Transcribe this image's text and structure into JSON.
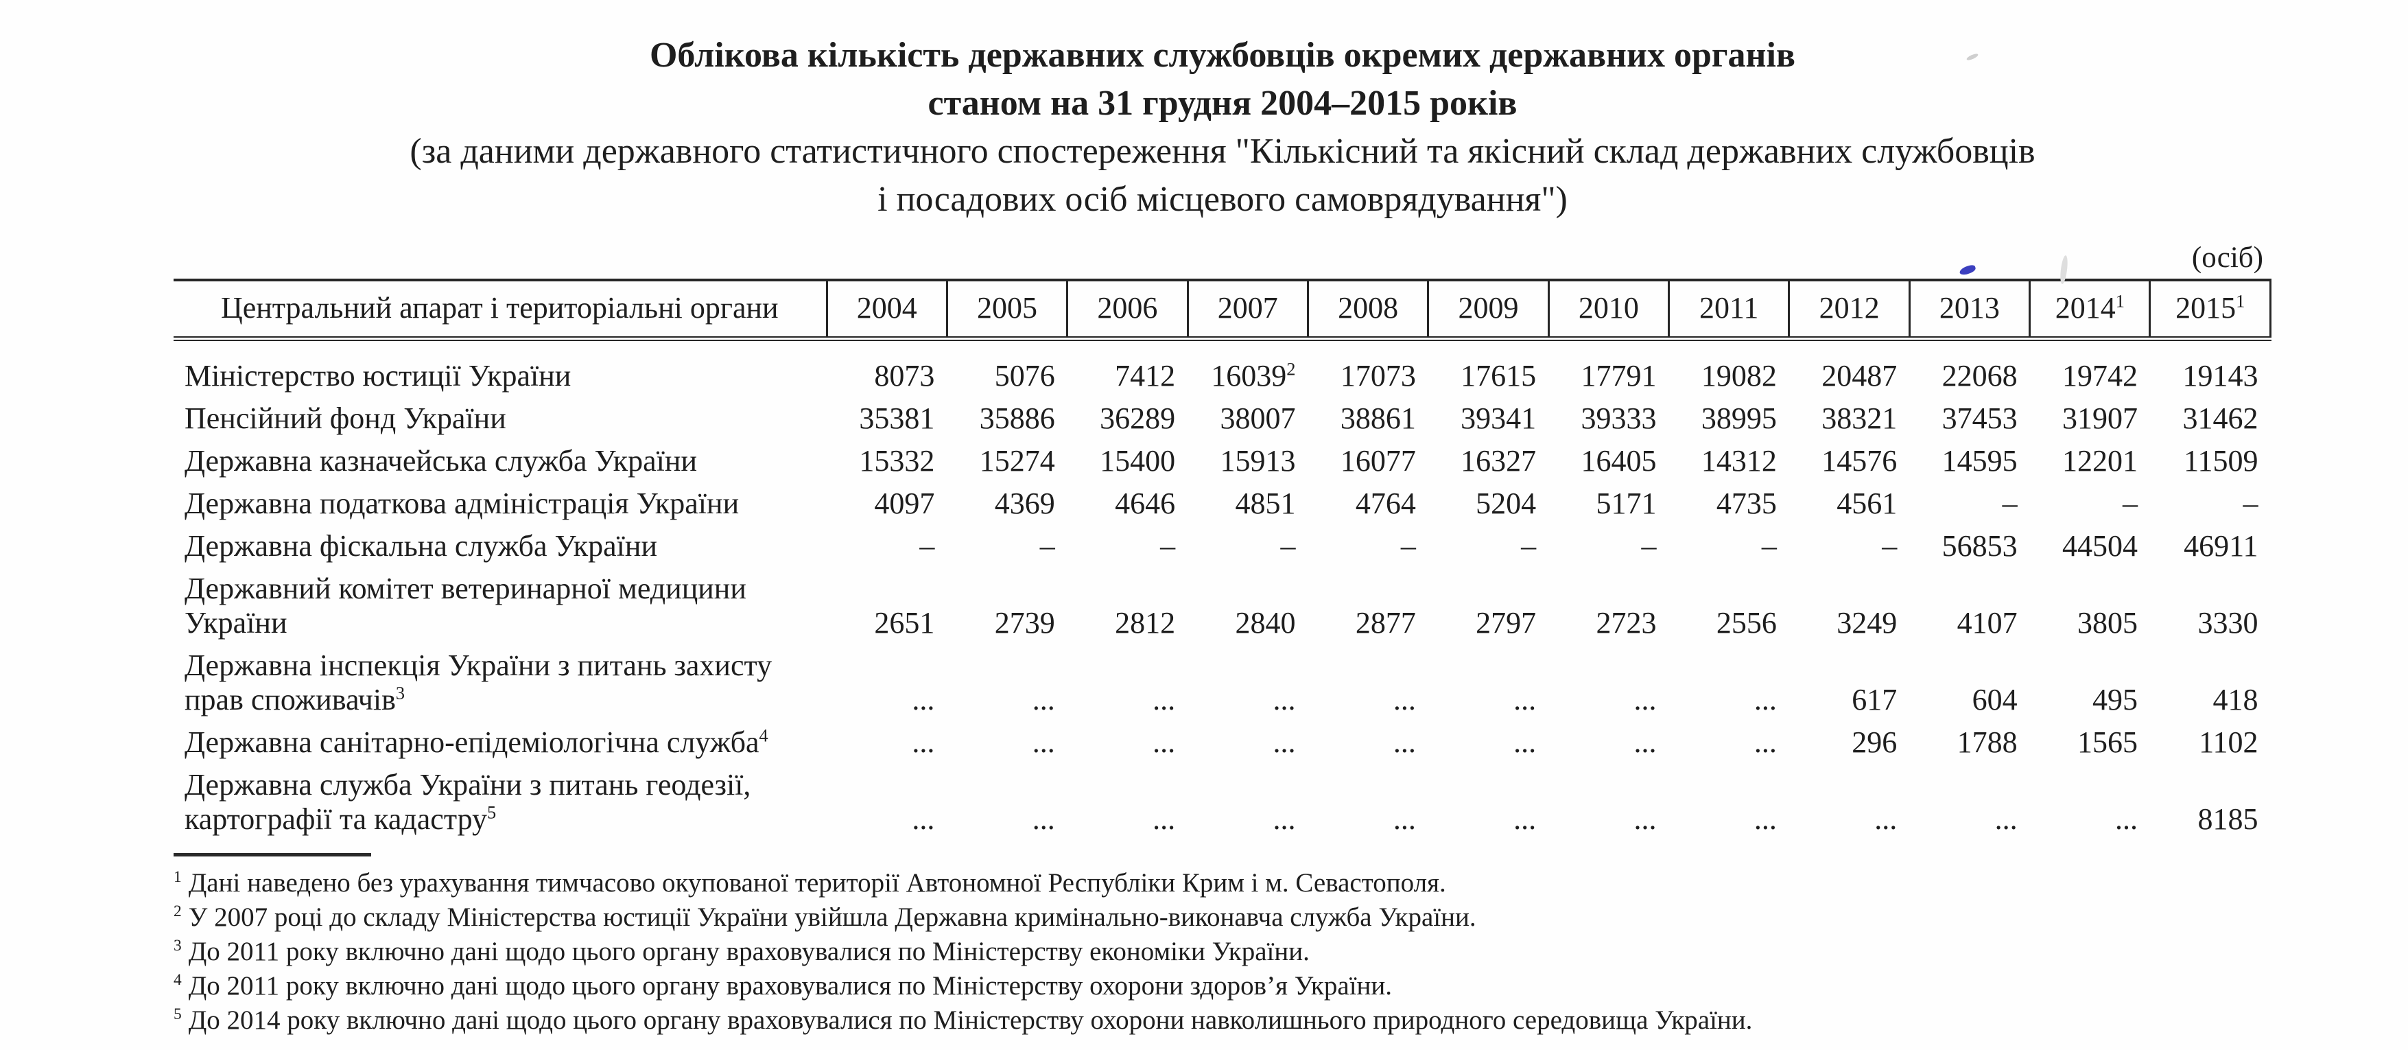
{
  "title": {
    "line1": "Облікова кількість державних службовців окремих державних органів",
    "line2": "станом на 31 грудня 2004–2015 років",
    "subtitle_line1": "(за даними державного статистичного спостереження \"Кількісний та якісний склад державних службовців",
    "subtitle_line2": "і посадових осіб місцевого самоврядування\")"
  },
  "unit_label": "(осіб)",
  "table": {
    "org_header": "Центральний апарат і територіальні органи",
    "year_headers": [
      "2004",
      "2005",
      "2006",
      "2007",
      "2008",
      "2009",
      "2010",
      "2011",
      "2012",
      "2013",
      {
        "t": "2014",
        "sup": "1"
      },
      {
        "t": "2015",
        "sup": "1"
      }
    ],
    "rows": [
      {
        "name_lines": [
          "Міністерство юстиції України"
        ],
        "values": [
          "8073",
          "5076",
          "7412",
          {
            "t": "16039",
            "sup": "2"
          },
          "17073",
          "17615",
          "17791",
          "19082",
          "20487",
          "22068",
          "19742",
          "19143"
        ]
      },
      {
        "name_lines": [
          "Пенсійний фонд України"
        ],
        "values": [
          "35381",
          "35886",
          "36289",
          "38007",
          "38861",
          "39341",
          "39333",
          "38995",
          "38321",
          "37453",
          "31907",
          "31462"
        ]
      },
      {
        "name_lines": [
          "Державна казначейська служба України"
        ],
        "values": [
          "15332",
          "15274",
          "15400",
          "15913",
          "16077",
          "16327",
          "16405",
          "14312",
          "14576",
          "14595",
          "12201",
          "11509"
        ]
      },
      {
        "name_lines": [
          "Державна податкова адміністрація України"
        ],
        "values": [
          "4097",
          "4369",
          "4646",
          "4851",
          "4764",
          "5204",
          "5171",
          "4735",
          "4561",
          "–",
          "–",
          "–"
        ]
      },
      {
        "name_lines": [
          "Державна фіскальна служба України"
        ],
        "values": [
          "–",
          "–",
          "–",
          "–",
          "–",
          "–",
          "–",
          "–",
          "–",
          "56853",
          "44504",
          "46911"
        ]
      },
      {
        "name_lines": [
          "Державний комітет ветеринарної медицини",
          "України"
        ],
        "values": [
          "2651",
          "2739",
          "2812",
          "2840",
          "2877",
          "2797",
          "2723",
          "2556",
          "3249",
          "4107",
          "3805",
          "3330"
        ]
      },
      {
        "name_lines": [
          "Державна інспекція України з питань захисту",
          {
            "t": "прав споживачів",
            "sup": "3"
          }
        ],
        "values": [
          "...",
          "...",
          "...",
          "...",
          "...",
          "...",
          "...",
          "...",
          "617",
          "604",
          "495",
          "418"
        ]
      },
      {
        "name_lines": [
          {
            "t": "Державна санітарно-епідеміологічна служба",
            "sup": "4"
          }
        ],
        "values": [
          "...",
          "...",
          "...",
          "...",
          "...",
          "...",
          "...",
          "...",
          "296",
          "1788",
          "1565",
          "1102"
        ]
      },
      {
        "name_lines": [
          "Державна служба України з питань геодезії,",
          {
            "t": "картографії та кадастру",
            "sup": "5"
          }
        ],
        "values": [
          "...",
          "...",
          "...",
          "...",
          "...",
          "...",
          "...",
          "...",
          "...",
          "...",
          "...",
          "8185"
        ]
      }
    ]
  },
  "footnotes": [
    {
      "sup": "1",
      "text": "Дані наведено без урахування тимчасово окупованої території Автономної Республіки Крим і м. Севастополя."
    },
    {
      "sup": "2",
      "text": "У 2007 році до складу Міністерства юстиції України увійшла Державна кримінально-виконавча служба України."
    },
    {
      "sup": "3",
      "text": "До 2011 року включно дані щодо цього органу враховувалися по Міністерству економіки України."
    },
    {
      "sup": "4",
      "text": "До 2011 року включно дані щодо цього органу враховувалися по Міністерству охорони здоров’я України."
    },
    {
      "sup": "5",
      "text": "До 2014 року включно дані щодо цього органу враховувалися по Міністерству охорони навколишнього природного середовища України."
    }
  ]
}
